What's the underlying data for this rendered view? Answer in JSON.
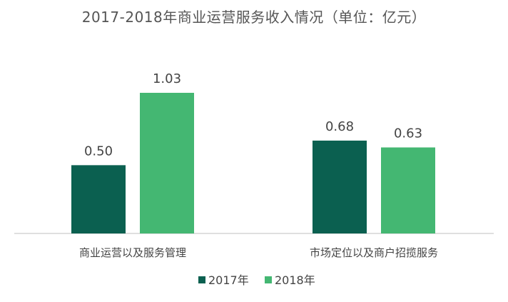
{
  "chart_data": {
    "type": "bar",
    "title": "2017-2018年商业运营服务收入情况（单位：亿元）",
    "categories": [
      "商业运营以及服务管理",
      "市场定位以及商户招揽服务"
    ],
    "series": [
      {
        "name": "2017年",
        "values": [
          0.5,
          0.68
        ],
        "labels": [
          "0.50",
          "0.68"
        ],
        "color": "#0b6050"
      },
      {
        "name": "2018年",
        "values": [
          1.03,
          0.63
        ],
        "labels": [
          "1.03",
          "0.63"
        ],
        "color": "#44b772"
      }
    ],
    "ylim": [
      0,
      1.03
    ],
    "grid": false,
    "legend": "bottom",
    "xlabel": "",
    "ylabel": ""
  }
}
